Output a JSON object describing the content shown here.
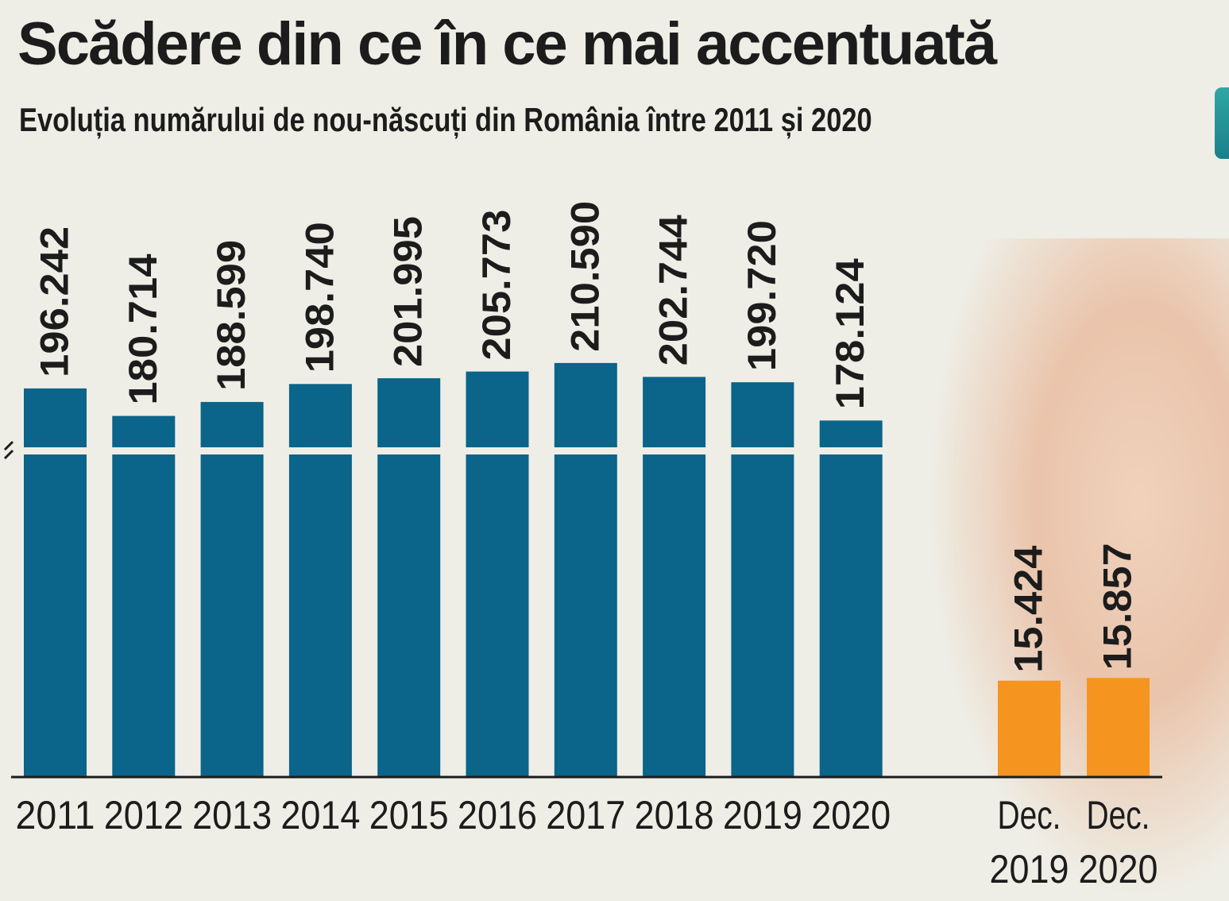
{
  "chart_data": {
    "type": "bar",
    "title": "Scădere din ce în ce mai accentuată",
    "subtitle": "Evoluția numărului de nou-născuți din România între 2011 și 2020",
    "axis_break": true,
    "series": [
      {
        "color": "#0b6489",
        "categories": [
          "2011",
          "2012",
          "2013",
          "2014",
          "2015",
          "2016",
          "2017",
          "2018",
          "2019",
          "2020"
        ],
        "values": [
          196242,
          180714,
          188599,
          198740,
          201995,
          205773,
          210590,
          202744,
          199720,
          178124
        ],
        "labels": [
          "196.242",
          "180.714",
          "188.599",
          "198.740",
          "201.995",
          "205.773",
          "210.590",
          "202.744",
          "199.720",
          "178.124"
        ]
      },
      {
        "color": "#f5951f",
        "categories": [
          "Dec. 2019",
          "Dec. 2020"
        ],
        "category_lines": [
          [
            "Dec.",
            "2019"
          ],
          [
            "Dec.",
            "2020"
          ]
        ],
        "values": [
          15424,
          15857
        ],
        "labels": [
          "15.424",
          "15.857"
        ]
      }
    ]
  }
}
